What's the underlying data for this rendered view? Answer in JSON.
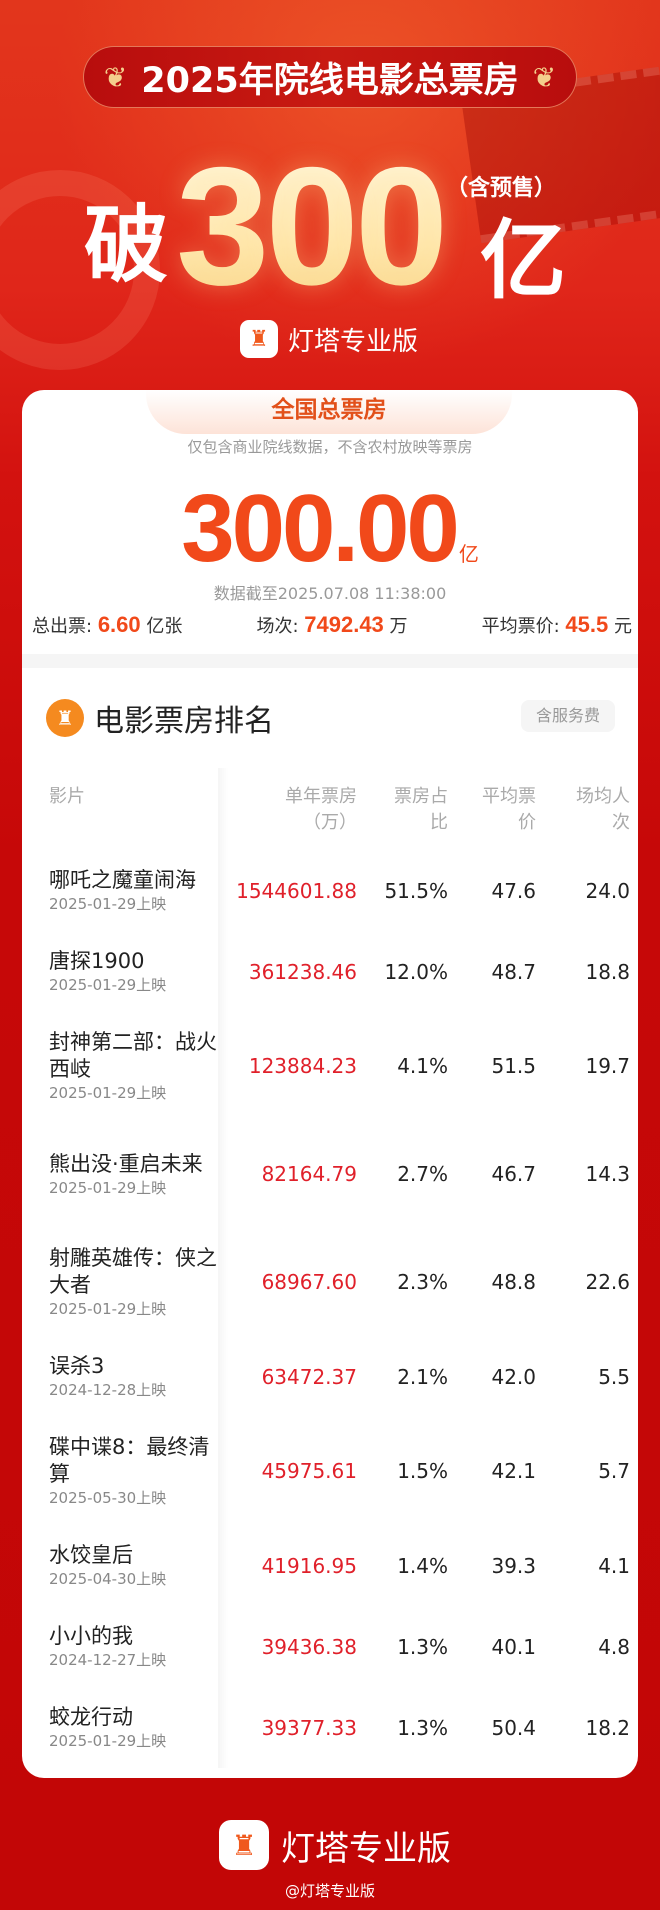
{
  "header": {
    "title": "2025年院线电影总票房",
    "prefix": "破",
    "number": "300",
    "unit": "亿",
    "note": "（含预售）",
    "brand": "灯塔专业版"
  },
  "summary": {
    "tab": "全国总票房",
    "subtitle": "仅包含商业院线数据，不含农村放映等票房",
    "total": "300.00",
    "total_unit": "亿",
    "as_of": "数据截至2025.07.08 11:38:00",
    "stats": [
      {
        "label": "总出票:",
        "value": "6.60",
        "unit": "亿张"
      },
      {
        "label": "场次:",
        "value": "7492.43",
        "unit": "万"
      },
      {
        "label": "平均票价:",
        "value": "45.5",
        "unit": "元"
      }
    ]
  },
  "ranking": {
    "title": "电影票房排名",
    "badge": "含服务费",
    "columns": [
      "影片",
      "单年票房\n（万）",
      "票房占\n比",
      "平均票\n价",
      "场均人\n次"
    ],
    "rows": [
      {
        "title": "哪吒之魔童闹海",
        "date": "2025-01-29上映",
        "box": "1544601.88",
        "share": "51.5%",
        "price": "47.6",
        "avg": "24.0",
        "lines": 1
      },
      {
        "title": "唐探1900",
        "date": "2025-01-29上映",
        "box": "361238.46",
        "share": "12.0%",
        "price": "48.7",
        "avg": "18.8",
        "lines": 1
      },
      {
        "title": "封神第二部：战火西岐",
        "date": "2025-01-29上映",
        "box": "123884.23",
        "share": "4.1%",
        "price": "51.5",
        "avg": "19.7",
        "lines": 2
      },
      {
        "title": "熊出没·重启未来",
        "date": "2025-01-29上映",
        "box": "82164.79",
        "share": "2.7%",
        "price": "46.7",
        "avg": "14.3",
        "lines": 2
      },
      {
        "title": "射雕英雄传：侠之大者",
        "date": "2025-01-29上映",
        "box": "68967.60",
        "share": "2.3%",
        "price": "48.8",
        "avg": "22.6",
        "lines": 2
      },
      {
        "title": "误杀3",
        "date": "2024-12-28上映",
        "box": "63472.37",
        "share": "2.1%",
        "price": "42.0",
        "avg": "5.5",
        "lines": 1
      },
      {
        "title": "碟中谍8：最终清算",
        "date": "2025-05-30上映",
        "box": "45975.61",
        "share": "1.5%",
        "price": "42.1",
        "avg": "5.7",
        "lines": 2
      },
      {
        "title": "水饺皇后",
        "date": "2025-04-30上映",
        "box": "41916.95",
        "share": "1.4%",
        "price": "39.3",
        "avg": "4.1",
        "lines": 1
      },
      {
        "title": "小小的我",
        "date": "2024-12-27上映",
        "box": "39436.38",
        "share": "1.3%",
        "price": "40.1",
        "avg": "4.8",
        "lines": 1
      },
      {
        "title": "蛟龙行动",
        "date": "2025-01-29上映",
        "box": "39377.33",
        "share": "1.3%",
        "price": "50.4",
        "avg": "18.2",
        "lines": 1
      }
    ]
  },
  "footer": {
    "brand": "灯塔专业版",
    "weibo": "@灯塔专业版"
  },
  "colors": {
    "accent": "#f1491a",
    "box_red": "#e0202a",
    "background": "#c60808"
  },
  "icons": {
    "laurel": "laurel-icon",
    "brand": "lighthouse-icon"
  }
}
